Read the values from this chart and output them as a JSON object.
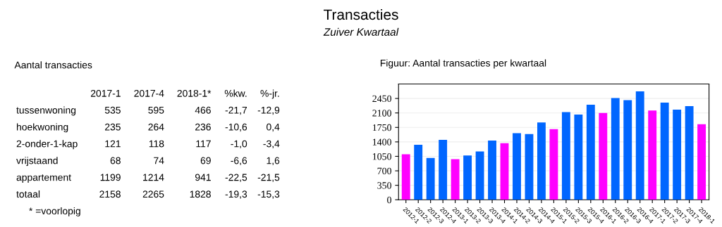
{
  "chart_data": [
    {
      "type": "other",
      "title": "Transacties",
      "subtitle": "Zuiver Kwartaal",
      "annotations": [
        "Aantal transacties",
        "* =voorlopig"
      ],
      "categories": [
        "2017-1",
        "2017-4",
        "2018-1*",
        "%kw.",
        "%-jr."
      ],
      "y_categories": [
        "tussenwoning",
        "hoekwoning",
        "2-onder-1-kap",
        "vrijstaand",
        "appartement",
        "totaal"
      ],
      "cell_labels": [
        [
          "535",
          "595",
          "466",
          "-21,7",
          "-12,9"
        ],
        [
          "235",
          "264",
          "236",
          "-10,6",
          "0,4"
        ],
        [
          "121",
          "118",
          "117",
          "-1,0",
          "-3,4"
        ],
        [
          "68",
          "74",
          "69",
          "-6,6",
          "1,6"
        ],
        [
          "1199",
          "1214",
          "941",
          "-22,5",
          "-21,5"
        ],
        [
          "2158",
          "2265",
          "1828",
          "-19,3",
          "-15,3"
        ]
      ]
    },
    {
      "type": "bar",
      "title": "Figuur: Aantal transacties per kwartaal",
      "categories": [
        "2012-1",
        "2012-2",
        "2012-3",
        "2012-4",
        "2013-1",
        "2013-2",
        "2013-3",
        "2013-4",
        "2014-1",
        "2014-2",
        "2014-3",
        "2014-4",
        "2015-1",
        "2015-2",
        "2015-3",
        "2015-4",
        "2016-1",
        "2016-2",
        "2016-3",
        "2016-4",
        "2017-1",
        "2017-2",
        "2017-3",
        "2017-4",
        "2018-1"
      ],
      "values": [
        1100,
        1330,
        1010,
        1450,
        980,
        1070,
        1170,
        1430,
        1370,
        1610,
        1590,
        1870,
        1710,
        2120,
        2060,
        2300,
        2100,
        2460,
        2410,
        2620,
        2158,
        2350,
        2180,
        2265,
        1828
      ],
      "colors": [
        "#ff00ff",
        "#0066ff",
        "#0066ff",
        "#0066ff",
        "#ff00ff",
        "#0066ff",
        "#0066ff",
        "#0066ff",
        "#ff00ff",
        "#0066ff",
        "#0066ff",
        "#0066ff",
        "#ff00ff",
        "#0066ff",
        "#0066ff",
        "#0066ff",
        "#ff00ff",
        "#0066ff",
        "#0066ff",
        "#0066ff",
        "#ff00ff",
        "#0066ff",
        "#0066ff",
        "#0066ff",
        "#ff00ff"
      ],
      "ylim": [
        0,
        2800
      ],
      "yticks": [
        0,
        350,
        700,
        1050,
        1400,
        1750,
        2100,
        2450
      ],
      "grid": "y",
      "legend": false
    }
  ]
}
